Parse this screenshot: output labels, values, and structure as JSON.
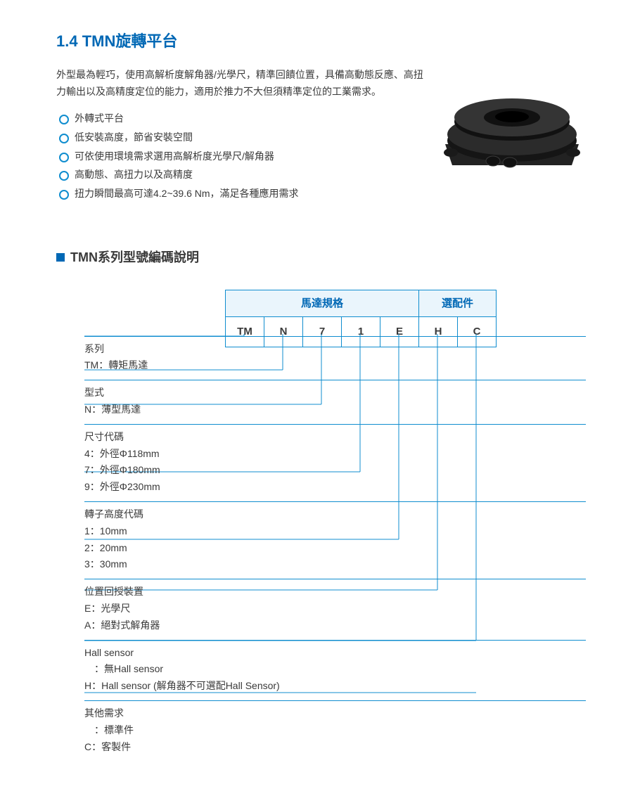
{
  "title": "1.4 TMN旋轉平台",
  "intro": "外型最為輕巧，使用高解析度解角器/光學尺，精準回饋位置，具備高動態反應、高扭力輸出以及高精度定位的能力，適用於推力不大但須精準定位的工業需求。",
  "bullets": [
    "外轉式平台",
    "低安裝高度，節省安裝空間",
    "可依使用環境需求選用高解析度光學尺/解角器",
    "高動態、高扭力以及高精度",
    "扭力瞬間最高可達4.2~39.6 Nm，滿足各種應用需求"
  ],
  "subheading": "TMN系列型號編碼說明",
  "tableHeaders": {
    "spec": "馬達規格",
    "options": "選配件"
  },
  "codeCells": [
    "TM",
    "N",
    "7",
    "1",
    "E",
    "H",
    "C"
  ],
  "groups": [
    {
      "title": "系列",
      "items": [
        "TM：轉矩馬達"
      ]
    },
    {
      "title": "型式",
      "items": [
        "N：薄型馬達"
      ]
    },
    {
      "title": "尺寸代碼",
      "items": [
        "4：外徑Φ118mm",
        "7：外徑Φ180mm",
        "9：外徑Φ230mm"
      ]
    },
    {
      "title": "轉子高度代碼",
      "items": [
        "1：10mm",
        "2：20mm",
        "3：30mm"
      ]
    },
    {
      "title": "位置回授裝置",
      "items": [
        "E：光學尺",
        "A：絕對式解角器"
      ]
    },
    {
      "title": "Hall sensor",
      "items": [
        "　：無Hall sensor",
        "H：Hall sensor (解角器不可選配Hall Sensor)"
      ]
    },
    {
      "title": "其他需求",
      "items": [
        "　：標準件",
        "C：客製件"
      ]
    }
  ],
  "colors": {
    "brand": "#0068b5",
    "line": "#0f8dcf",
    "headBg": "#eaf5fc",
    "text": "#3a3a3a"
  },
  "layout": {
    "cellWidth": 55,
    "tableLeft": 240,
    "groupTops": [
      66,
      114,
      163,
      259,
      355,
      427,
      499,
      573
    ],
    "cellCenters": [
      27,
      82,
      137,
      192,
      247,
      302,
      357
    ]
  }
}
